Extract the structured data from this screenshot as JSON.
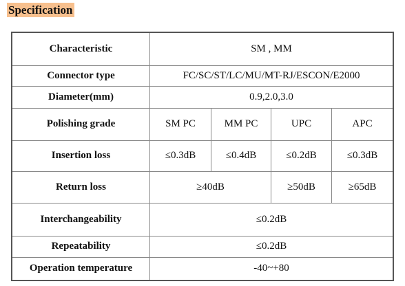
{
  "heading": "Specification",
  "table": {
    "rows": [
      [
        "Characteristic",
        "SM , MM"
      ],
      [
        "Connector type",
        "FC/SC/ST/LC/MU/MT-RJ/ESCON/E2000"
      ],
      [
        "Diameter(mm)",
        "0.9,2.0,3.0"
      ],
      [
        "Polishing grade",
        "SM PC",
        "MM PC",
        "UPC",
        "APC"
      ],
      [
        "Insertion loss",
        "≤0.3dB",
        "≤0.4dB",
        "≤0.2dB",
        "≤0.3dB"
      ],
      [
        "Return loss",
        "≥40dB",
        "≥50dB",
        "≥65dB"
      ],
      [
        "Interchangeability",
        "≤0.2dB"
      ],
      [
        "Repeatability",
        "≤0.2dB"
      ],
      [
        "Operation temperature",
        "-40~+80"
      ]
    ]
  }
}
